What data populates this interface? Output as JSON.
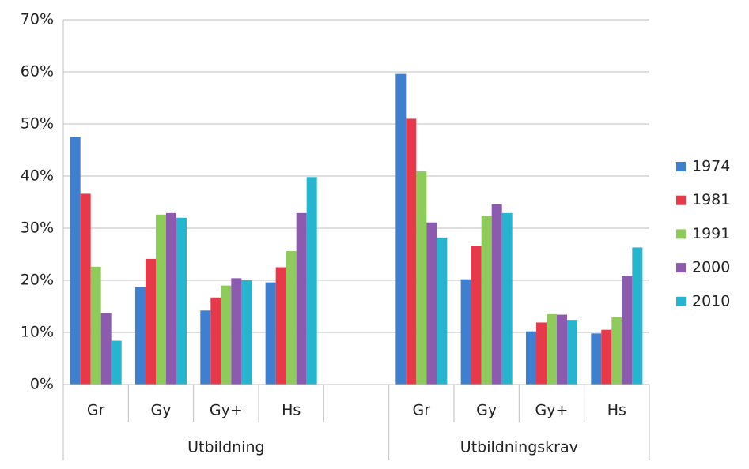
{
  "chart_data": {
    "type": "bar",
    "groups": [
      {
        "name": "Utbildning",
        "categories": [
          "Gr",
          "Gy",
          "Gy+",
          "Hs",
          null
        ]
      },
      {
        "name": "Utbildningskrav",
        "categories": [
          "Gr",
          "Gy",
          "Gy+",
          "Hs"
        ]
      }
    ],
    "series": [
      {
        "name": "1974",
        "color": "#3f7fcf",
        "values": [
          47.5,
          18.7,
          14.2,
          19.6,
          null,
          59.6,
          20.2,
          10.2,
          9.8
        ]
      },
      {
        "name": "1981",
        "color": "#e8394b",
        "values": [
          36.6,
          24.1,
          16.7,
          22.5,
          null,
          51.0,
          26.6,
          11.9,
          10.5
        ]
      },
      {
        "name": "1991",
        "color": "#8fcb5a",
        "values": [
          22.6,
          32.6,
          19.0,
          25.6,
          null,
          40.9,
          32.4,
          13.5,
          12.9
        ]
      },
      {
        "name": "2000",
        "color": "#8c5aae",
        "values": [
          13.7,
          32.9,
          20.4,
          32.9,
          null,
          31.1,
          34.6,
          13.4,
          20.8
        ]
      },
      {
        "name": "2010",
        "color": "#25b5ce",
        "values": [
          8.4,
          32.0,
          20.0,
          39.8,
          null,
          28.2,
          32.9,
          12.4,
          26.3
        ]
      }
    ],
    "ylim": [
      0,
      70
    ],
    "yticks": [
      {
        "value": 0,
        "label": "0%"
      },
      {
        "value": 10,
        "label": "10%"
      },
      {
        "value": 20,
        "label": "20%"
      },
      {
        "value": 30,
        "label": "30%"
      },
      {
        "value": 40,
        "label": "40%"
      },
      {
        "value": 50,
        "label": "50%"
      },
      {
        "value": 60,
        "label": "60%"
      },
      {
        "value": 70,
        "label": "70%"
      }
    ],
    "grid": true,
    "legend": "right"
  }
}
